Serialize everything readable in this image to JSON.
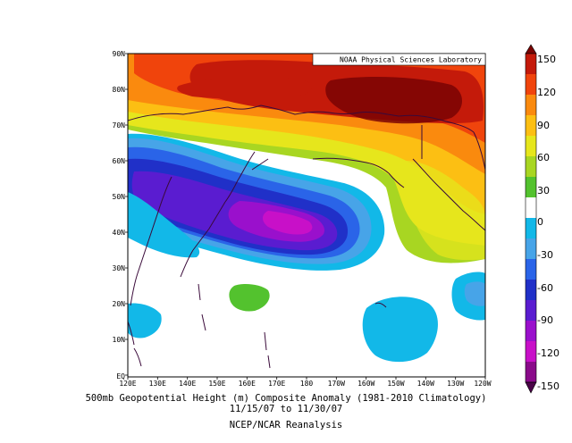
{
  "map": {
    "credit": "NOAA Physical Sciences Laboratory",
    "lat_labels": [
      "90N",
      "80N",
      "70N",
      "60N",
      "50N",
      "40N",
      "30N",
      "20N",
      "10N",
      "EQ"
    ],
    "lon_labels": [
      "120E",
      "130E",
      "140E",
      "150E",
      "160E",
      "170E",
      "180",
      "170W",
      "160W",
      "150W",
      "140W",
      "130W",
      "120W"
    ],
    "region": {
      "lon_range": [
        "120E",
        "120W"
      ],
      "lat_range": [
        "EQ",
        "90N"
      ]
    }
  },
  "colorbar": {
    "labels": [
      "150",
      "120",
      "90",
      "60",
      "30",
      "0",
      "-30",
      "-60",
      "-90",
      "-120",
      "-150"
    ],
    "colors": [
      "#7a0403",
      "#c41a0a",
      "#f0440c",
      "#fa8a0e",
      "#fcbf13",
      "#e6e61c",
      "#a8d622",
      "#53c22e",
      "#ffffff",
      "#12b8e8",
      "#47a4e8",
      "#2a64e8",
      "#2030c8",
      "#5a1cd0",
      "#9a10cc",
      "#c810c8",
      "#8a0a8a",
      "#4a0448"
    ]
  },
  "caption": {
    "line1": "500mb Geopotential Height (m) Composite Anomaly (1981-2010 Climatology)",
    "line2": "11/15/07  to 11/30/07",
    "line3": "NCEP/NCAR Reanalysis"
  }
}
